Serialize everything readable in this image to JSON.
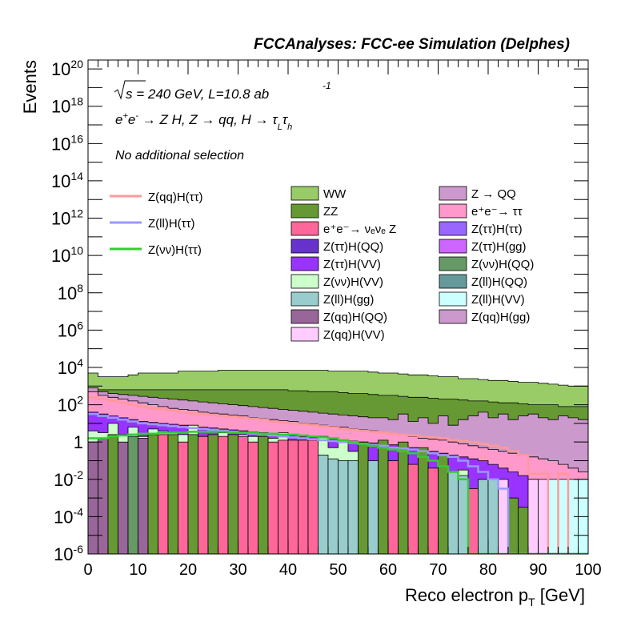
{
  "chart_data": {
    "type": "area",
    "title": "FCCAnalyses: FCC-ee Simulation (Delphes)",
    "xlabel": "Reco electron p",
    "xlabel_sub": "T",
    "xlabel_unit": "[GeV]",
    "ylabel": "Events",
    "xlim": [
      0,
      100
    ],
    "ylim": [
      1e-06,
      3e+20
    ],
    "log_y": true,
    "bin_width": 2,
    "x_ticks": [
      "0",
      "10",
      "20",
      "30",
      "40",
      "50",
      "60",
      "70",
      "80",
      "90",
      "100"
    ],
    "y_ticks": [
      {
        "base": "10",
        "exp": "20"
      },
      {
        "base": "10",
        "exp": "18"
      },
      {
        "base": "10",
        "exp": "16"
      },
      {
        "base": "10",
        "exp": "14"
      },
      {
        "base": "10",
        "exp": "12"
      },
      {
        "base": "10",
        "exp": "10"
      },
      {
        "base": "10",
        "exp": "8"
      },
      {
        "base": "10",
        "exp": "6"
      },
      {
        "base": "10",
        "exp": "4"
      },
      {
        "base": "10",
        "exp": "2"
      },
      {
        "base": "1",
        "exp": ""
      },
      {
        "base": "10",
        "exp": "-2"
      },
      {
        "base": "10",
        "exp": "-4"
      },
      {
        "base": "10",
        "exp": "-6"
      }
    ],
    "annotations": {
      "energy": "s = 240 GeV, L=10.8 ab",
      "energy_sup": "-1",
      "process": "e",
      "process_rest": "e",
      "process_tail": " → Z H, Z → qq, H → τ",
      "process_L": "L",
      "process_tau": "τ",
      "process_h": "h",
      "selection": "No additional selection"
    },
    "signal_legend": [
      {
        "name": "Z(qq)H(ττ)",
        "color": "#ff9999"
      },
      {
        "name": "Z(ll)H(ττ)",
        "color": "#9999ff"
      },
      {
        "name": "Z(νν)H(ττ)",
        "color": "#33cc33"
      }
    ],
    "background_legend_col1": [
      {
        "name": "WW",
        "color": "#99cc66"
      },
      {
        "name": "ZZ",
        "color": "#669933"
      },
      {
        "name": "e⁺e⁻→ νₑνₑ Z",
        "color": "#ff6699"
      },
      {
        "name": "Z(ττ)H(QQ)",
        "color": "#6633cc"
      },
      {
        "name": "Z(ττ)H(VV)",
        "color": "#9933ff"
      },
      {
        "name": "Z(νν)H(VV)",
        "color": "#ccffcc"
      },
      {
        "name": "Z(ll)H(gg)",
        "color": "#99cccc"
      },
      {
        "name": "Z(qq)H(QQ)",
        "color": "#996699"
      },
      {
        "name": "Z(qq)H(VV)",
        "color": "#ffccff"
      }
    ],
    "background_legend_col2": [
      {
        "name": "Z → QQ",
        "color": "#cc99cc"
      },
      {
        "name": "e⁺e⁻→ ττ",
        "color": "#ff99cc"
      },
      {
        "name": "Z(ττ)H(ττ)",
        "color": "#9966ff"
      },
      {
        "name": "Z(ττ)H(gg)",
        "color": "#cc66ff"
      },
      {
        "name": "Z(νν)H(QQ)",
        "color": "#669966"
      },
      {
        "name": "Z(ll)H(QQ)",
        "color": "#669999"
      },
      {
        "name": "Z(ll)H(VV)",
        "color": "#ccffff"
      },
      {
        "name": "Z(qq)H(gg)",
        "color": "#cc99cc"
      }
    ],
    "stack_boundaries_log10": [
      [
        3.7,
        3.5,
        3.5,
        3.5,
        3.6,
        3.7,
        3.7,
        3.7,
        3.7,
        3.8,
        3.8,
        3.8,
        3.8,
        3.85,
        3.85,
        3.85,
        3.85,
        3.85,
        3.85,
        3.85,
        3.85,
        3.85,
        3.85,
        3.85,
        3.8,
        3.8,
        3.8,
        3.8,
        3.75,
        3.7,
        3.7,
        3.65,
        3.6,
        3.6,
        3.55,
        3.5,
        3.5,
        3.4,
        3.4,
        3.35,
        3.3,
        3.3,
        3.25,
        3.2,
        3.2,
        3.15,
        3.1,
        3.05,
        3.0,
        3.0
      ],
      [
        2.9,
        2.8,
        2.8,
        2.8,
        2.8,
        2.8,
        2.8,
        2.8,
        2.8,
        2.8,
        2.8,
        2.8,
        2.8,
        2.8,
        2.8,
        2.8,
        2.8,
        2.8,
        2.8,
        2.8,
        2.75,
        2.75,
        2.7,
        2.7,
        2.7,
        2.65,
        2.6,
        2.6,
        2.55,
        2.5,
        2.5,
        2.45,
        2.4,
        2.4,
        2.35,
        2.3,
        2.3,
        2.25,
        2.2,
        2.2,
        2.15,
        2.1,
        2.1,
        2.05,
        2.0,
        2.0,
        2.0,
        1.9,
        1.9,
        1.9
      ],
      [
        2.9,
        2.7,
        2.6,
        2.55,
        2.5,
        2.45,
        2.4,
        2.35,
        2.3,
        2.25,
        2.2,
        2.15,
        2.1,
        2.05,
        2.0,
        1.95,
        1.9,
        1.85,
        1.8,
        1.75,
        1.7,
        1.65,
        1.6,
        1.55,
        1.5,
        1.45,
        1.4,
        1.35,
        1.3,
        1.3,
        1.2,
        1.5,
        1.1,
        1.3,
        1.0,
        1.4,
        0.9,
        1.2,
        1.4,
        1.6,
        1.3,
        1.5,
        1.2,
        1.4,
        1.5,
        1.3,
        1.2,
        1.4,
        1.3,
        1.2
      ],
      [
        2.7,
        2.5,
        2.4,
        2.3,
        2.2,
        2.1,
        2.0,
        1.9,
        1.8,
        1.75,
        1.7,
        1.6,
        1.55,
        1.5,
        1.45,
        1.4,
        1.3,
        1.25,
        1.2,
        1.15,
        1.1,
        1.0,
        0.95,
        0.9,
        0.85,
        0.8,
        0.7,
        0.65,
        0.6,
        0.5,
        0.45,
        0.4,
        0.3,
        0.2,
        0.15,
        0.1,
        0.0,
        -0.1,
        -0.2,
        -0.3,
        -0.4,
        -0.5,
        -0.6,
        -0.7,
        -0.8,
        -0.9,
        -1.0,
        -1.2,
        -1.4,
        -1.6
      ],
      [
        1.6,
        1.5,
        1.4,
        1.3,
        1.2,
        1.1,
        1.05,
        1.0,
        0.95,
        0.9,
        0.85,
        0.8,
        0.75,
        0.7,
        0.65,
        0.6,
        0.55,
        0.5,
        0.45,
        0.4,
        0.35,
        0.3,
        0.25,
        0.2,
        0.15,
        0.1,
        0.05,
        0.0,
        -0.05,
        -0.1,
        -0.15,
        -0.2,
        -0.3,
        -0.4,
        -0.5,
        -0.6,
        -0.7,
        -0.8,
        -0.9,
        -1.0,
        -1.2,
        -1.4,
        -1.6,
        -1.8,
        -2.0,
        -2.2,
        -2.4,
        -2.6,
        -2.8,
        -3.0
      ],
      [
        0.6,
        0.5,
        1.0,
        0.4,
        0.8,
        0.3,
        0.7,
        0.6,
        0.5,
        0.4,
        0.9,
        0.3,
        0.2,
        0.5,
        0.1,
        0.4,
        0.3,
        0.0,
        0.2,
        0.5,
        -0.1,
        0.1,
        -0.2,
        0.3,
        -0.3,
        0.0,
        -0.5,
        -0.2,
        -1.5,
        -0.6,
        -1.0,
        -0.5,
        -1.5,
        -0.8,
        -2.0,
        -1.0,
        -2.0,
        -1.5,
        -3.0,
        -2.0,
        -2.5,
        -3.0,
        -4.0,
        -5.0,
        -5.5,
        -6.0,
        -6.0,
        -6.0,
        -6.0,
        -6.0
      ]
    ],
    "signal_lines_log10": {
      "Z(qq)H(ττ)": [
        2.4,
        2.3,
        2.2,
        2.1,
        2.0,
        1.9,
        1.8,
        1.75,
        1.7,
        1.6,
        1.55,
        1.5,
        1.45,
        1.4,
        1.35,
        1.3,
        1.25,
        1.2,
        1.1,
        1.05,
        1.0,
        0.95,
        0.9,
        0.85,
        0.8,
        0.7,
        0.65,
        0.6,
        0.55,
        0.5,
        0.45,
        0.4,
        0.35,
        0.3,
        0.25,
        0.2,
        0.1,
        0.05,
        0.0,
        -0.1,
        -0.2,
        -0.3,
        -0.5,
        -0.7,
        -1.7,
        -1.7,
        -6.0,
        -1.7,
        -6.0,
        -6.0
      ],
      "Z(ll)H(ττ)": [
        1.5,
        1.4,
        1.3,
        1.2,
        1.1,
        1.0,
        0.95,
        0.9,
        0.85,
        0.8,
        0.75,
        0.7,
        0.65,
        0.6,
        0.55,
        0.5,
        0.45,
        0.4,
        0.35,
        0.3,
        0.25,
        0.2,
        0.15,
        0.1,
        0.05,
        0.0,
        -0.05,
        -0.1,
        -0.15,
        -0.2,
        -0.3,
        -0.35,
        -0.4,
        -0.5,
        -0.6,
        -0.7,
        -0.8,
        -1.0,
        -1.3,
        -1.6,
        -2.0,
        -2.5,
        -6.0,
        -6.0,
        -6.0,
        -6.0,
        -6.0,
        -6.0,
        -6.0,
        -6.0
      ],
      "Z(νν)H(ττ)": [
        0.2,
        0.2,
        0.3,
        0.35,
        0.4,
        0.45,
        0.45,
        0.5,
        0.5,
        0.5,
        0.55,
        0.55,
        0.55,
        0.55,
        0.5,
        0.5,
        0.5,
        0.45,
        0.45,
        0.4,
        0.4,
        0.35,
        0.3,
        0.25,
        0.2,
        0.1,
        0.0,
        -0.1,
        -0.2,
        -0.3,
        -0.4,
        -0.5,
        -0.6,
        -0.8,
        -1.0,
        -1.3,
        -1.6,
        -2.0,
        -6.0,
        -6.0,
        -6.0,
        -6.0,
        -6.0,
        -6.0,
        -6.0,
        -6.0,
        -6.0,
        -6.0,
        -6.0,
        -6.0
      ]
    },
    "low_bar_colors": [
      "#996699",
      "#996699",
      "#669933",
      "#996699",
      "#669966",
      "#996699",
      "#669933",
      "#ff6699",
      "#669933",
      "#ff6699",
      "#669933",
      "#ff6699",
      "#669933",
      "#ff6699",
      "#669933",
      "#ff6699",
      "#ff6699",
      "#669933",
      "#ff6699",
      "#ff6699",
      "#ff6699",
      "#ff6699",
      "#ff6699",
      "#99cccc",
      "#99cccc",
      "#99cccc",
      "#99cccc",
      "#669933",
      "#99cccc",
      "#669933",
      "#ff6699",
      "#669933",
      "#ff6699",
      "#669933",
      "#ff6699",
      "#669933",
      "#99cccc",
      "#99cccc",
      "#ff6699",
      "#99cccc",
      "#99cccc",
      "#ffccff",
      "#669933",
      "#669933",
      "#ffccff",
      "#ffccff",
      "#ccffff",
      "#ccffff",
      "#ccffff",
      "#ccffff"
    ],
    "low_bar_tops_log10": [
      0.0,
      0.2,
      0.4,
      0.0,
      0.3,
      0.2,
      0.4,
      0.4,
      0.4,
      0.0,
      0.4,
      0.3,
      0.4,
      0.3,
      0.4,
      0.3,
      0.0,
      0.3,
      0.0,
      0.1,
      0.1,
      0.1,
      0.1,
      -0.7,
      -0.9,
      -1.0,
      -1.0,
      0.0,
      -1.0,
      0.1,
      -1.0,
      0.0,
      -1.2,
      -0.3,
      -1.4,
      -0.7,
      -1.6,
      -1.8,
      -2.5,
      -2.0,
      -2.0,
      -2.0,
      -3.0,
      -3.5,
      -2.0,
      -2.0,
      -2.0,
      -2.0,
      -2.0,
      -2.0
    ]
  }
}
